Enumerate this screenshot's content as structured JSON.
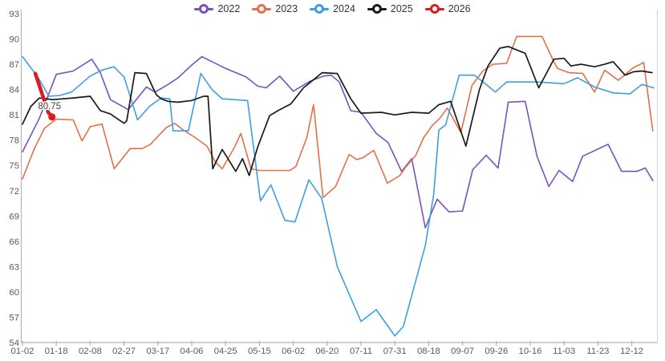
{
  "chart_data": {
    "type": "line",
    "title": "",
    "grid": false,
    "legend_position": "top-center",
    "colors": {
      "axis_line": "#b3b3b3",
      "right_border": "#d9d9d9",
      "tick_label": "#595959",
      "annotation_text": "#3d3d3d"
    },
    "x_axis": {
      "tick_labels": [
        "01-02",
        "01-18",
        "02-08",
        "02-27",
        "03-17",
        "04-06",
        "04-25",
        "05-15",
        "06-02",
        "06-20",
        "07-11",
        "07-31",
        "08-18",
        "09-07",
        "09-26",
        "10-16",
        "11-03",
        "11-23",
        "12-12"
      ],
      "range": [
        0,
        18.72
      ]
    },
    "y_axis": {
      "min": 54,
      "max": 93,
      "step": 3,
      "tick_labels": [
        "54",
        "57",
        "60",
        "63",
        "66",
        "69",
        "72",
        "75",
        "78",
        "81",
        "84",
        "87",
        "90",
        "93"
      ]
    },
    "annotation": {
      "text": "80.75",
      "series": "2026",
      "value": 80.75
    },
    "series": [
      {
        "name": "2022",
        "color": "#7a52bd",
        "line_width": 1.6,
        "marker_end": false,
        "points": [
          [
            0,
            76.6
          ],
          [
            0.5,
            80.6
          ],
          [
            1,
            85.8
          ],
          [
            1.5,
            86.2
          ],
          [
            2.05,
            87.6
          ],
          [
            2.3,
            86.0
          ],
          [
            2.6,
            82.8
          ],
          [
            3.0,
            81.9
          ],
          [
            3.12,
            81.6
          ],
          [
            3.66,
            84.3
          ],
          [
            3.92,
            83.7
          ],
          [
            4.3,
            84.6
          ],
          [
            4.6,
            85.4
          ],
          [
            5.0,
            86.9
          ],
          [
            5.3,
            87.9
          ],
          [
            6.0,
            86.5
          ],
          [
            6.6,
            85.5
          ],
          [
            6.95,
            84.4
          ],
          [
            7.2,
            84.2
          ],
          [
            7.6,
            85.6
          ],
          [
            8.0,
            83.8
          ],
          [
            8.5,
            85.0
          ],
          [
            8.9,
            85.6
          ],
          [
            9.12,
            85.7
          ],
          [
            9.36,
            84.9
          ],
          [
            9.7,
            81.5
          ],
          [
            10.0,
            81.3
          ],
          [
            10.45,
            78.8
          ],
          [
            10.8,
            77.7
          ],
          [
            11.2,
            74.3
          ],
          [
            11.5,
            75.8
          ],
          [
            11.9,
            67.6
          ],
          [
            12.25,
            71.0
          ],
          [
            12.6,
            69.5
          ],
          [
            13.0,
            69.6
          ],
          [
            13.3,
            74.5
          ],
          [
            13.7,
            76.2
          ],
          [
            14.05,
            74.7
          ],
          [
            14.35,
            82.5
          ],
          [
            14.85,
            82.6
          ],
          [
            15.2,
            76.1
          ],
          [
            15.55,
            72.5
          ],
          [
            15.85,
            74.4
          ],
          [
            16.25,
            73.1
          ],
          [
            16.55,
            76.1
          ],
          [
            17.3,
            77.5
          ],
          [
            17.7,
            74.3
          ],
          [
            18.15,
            74.3
          ],
          [
            18.4,
            74.7
          ],
          [
            18.62,
            73.2
          ]
        ]
      },
      {
        "name": "2023",
        "color": "#e1714b",
        "line_width": 1.6,
        "marker_end": false,
        "points": [
          [
            0,
            73.4
          ],
          [
            0.35,
            77.0
          ],
          [
            0.65,
            79.4
          ],
          [
            1,
            80.5
          ],
          [
            1.5,
            80.4
          ],
          [
            1.76,
            77.9
          ],
          [
            2.0,
            79.6
          ],
          [
            2.35,
            79.9
          ],
          [
            2.71,
            74.6
          ],
          [
            3.18,
            77.0
          ],
          [
            3.54,
            77.0
          ],
          [
            3.78,
            77.5
          ],
          [
            4.25,
            79.5
          ],
          [
            4.5,
            80.0
          ],
          [
            4.75,
            79.2
          ],
          [
            5.1,
            78.3
          ],
          [
            5.45,
            77.3
          ],
          [
            5.7,
            75.4
          ],
          [
            5.9,
            74.6
          ],
          [
            6.27,
            77.2
          ],
          [
            6.45,
            78.8
          ],
          [
            6.75,
            74.6
          ],
          [
            7.0,
            74.4
          ],
          [
            7.9,
            74.4
          ],
          [
            8.08,
            74.9
          ],
          [
            8.4,
            78.3
          ],
          [
            8.6,
            82.2
          ],
          [
            8.88,
            71.2
          ],
          [
            9.25,
            72.5
          ],
          [
            9.65,
            76.3
          ],
          [
            9.88,
            75.7
          ],
          [
            10.05,
            75.9
          ],
          [
            10.38,
            76.8
          ],
          [
            10.78,
            72.9
          ],
          [
            11.15,
            73.8
          ],
          [
            11.32,
            74.8
          ],
          [
            11.62,
            76.2
          ],
          [
            11.85,
            78.3
          ],
          [
            12.1,
            79.7
          ],
          [
            12.33,
            80.6
          ],
          [
            12.55,
            81.8
          ],
          [
            12.95,
            78.9
          ],
          [
            13.28,
            84.5
          ],
          [
            13.6,
            86.2
          ],
          [
            13.9,
            87.0
          ],
          [
            14.3,
            87.1
          ],
          [
            14.6,
            90.3
          ],
          [
            15.35,
            90.3
          ],
          [
            15.65,
            87.7
          ],
          [
            15.8,
            86.5
          ],
          [
            16.15,
            86.0
          ],
          [
            16.55,
            85.9
          ],
          [
            16.9,
            83.7
          ],
          [
            17.2,
            86.3
          ],
          [
            17.6,
            85.1
          ],
          [
            18.05,
            86.6
          ],
          [
            18.35,
            87.2
          ],
          [
            18.62,
            79.1
          ]
        ]
      },
      {
        "name": "2024",
        "color": "#3d9fe3",
        "line_width": 1.6,
        "marker_end": false,
        "points": [
          [
            0,
            87.9
          ],
          [
            0.45,
            85.5
          ],
          [
            0.78,
            83.2
          ],
          [
            1.1,
            83.3
          ],
          [
            1.45,
            83.7
          ],
          [
            2.0,
            85.6
          ],
          [
            2.35,
            86.3
          ],
          [
            2.7,
            86.7
          ],
          [
            3.0,
            85.5
          ],
          [
            3.4,
            80.4
          ],
          [
            3.75,
            82.0
          ],
          [
            4.1,
            83.0
          ],
          [
            4.35,
            82.9
          ],
          [
            4.45,
            79.1
          ],
          [
            4.9,
            79.1
          ],
          [
            5.27,
            85.9
          ],
          [
            5.6,
            84.0
          ],
          [
            5.9,
            82.9
          ],
          [
            6.65,
            82.7
          ],
          [
            7.03,
            70.8
          ],
          [
            7.34,
            72.7
          ],
          [
            7.75,
            68.5
          ],
          [
            8.05,
            68.3
          ],
          [
            8.46,
            73.3
          ],
          [
            8.84,
            71.1
          ],
          [
            9.3,
            63.0
          ],
          [
            10.0,
            56.5
          ],
          [
            10.45,
            57.9
          ],
          [
            11.0,
            54.8
          ],
          [
            11.25,
            55.9
          ],
          [
            11.9,
            65.5
          ],
          [
            12.15,
            71.6
          ],
          [
            12.3,
            79.2
          ],
          [
            12.5,
            79.8
          ],
          [
            12.9,
            85.7
          ],
          [
            13.35,
            85.7
          ],
          [
            13.7,
            84.6
          ],
          [
            13.97,
            83.7
          ],
          [
            14.3,
            84.9
          ],
          [
            15.2,
            84.9
          ],
          [
            16.0,
            84.7
          ],
          [
            16.4,
            85.4
          ],
          [
            16.9,
            84.3
          ],
          [
            17.45,
            83.6
          ],
          [
            17.95,
            83.5
          ],
          [
            18.3,
            84.6
          ],
          [
            18.65,
            84.2
          ]
        ]
      },
      {
        "name": "2025",
        "color": "#1a1a1a",
        "line_width": 1.7,
        "marker_end": false,
        "points": [
          [
            0,
            79.9
          ],
          [
            0.25,
            82.0
          ],
          [
            0.5,
            83.0
          ],
          [
            0.9,
            82.8
          ],
          [
            1.5,
            83.0
          ],
          [
            2.0,
            83.2
          ],
          [
            2.3,
            81.5
          ],
          [
            2.6,
            81.1
          ],
          [
            3.0,
            80.0
          ],
          [
            3.08,
            80.3
          ],
          [
            3.32,
            86.0
          ],
          [
            3.66,
            85.9
          ],
          [
            3.95,
            83.4
          ],
          [
            4.1,
            82.9
          ],
          [
            4.3,
            82.6
          ],
          [
            4.6,
            82.5
          ],
          [
            5.0,
            82.7
          ],
          [
            5.35,
            83.2
          ],
          [
            5.48,
            83.2
          ],
          [
            5.62,
            74.6
          ],
          [
            5.9,
            76.9
          ],
          [
            6.3,
            74.3
          ],
          [
            6.5,
            75.8
          ],
          [
            6.7,
            73.8
          ],
          [
            6.95,
            77.2
          ],
          [
            7.3,
            80.9
          ],
          [
            7.55,
            81.5
          ],
          [
            7.93,
            82.3
          ],
          [
            8.3,
            84.2
          ],
          [
            8.55,
            85.0
          ],
          [
            8.85,
            86.0
          ],
          [
            9.3,
            85.9
          ],
          [
            9.7,
            82.9
          ],
          [
            10.0,
            81.2
          ],
          [
            10.6,
            81.3
          ],
          [
            11.0,
            81.0
          ],
          [
            11.5,
            81.3
          ],
          [
            12.0,
            81.2
          ],
          [
            12.3,
            82.2
          ],
          [
            12.65,
            82.6
          ],
          [
            13.1,
            77.3
          ],
          [
            13.5,
            84.0
          ],
          [
            13.75,
            86.8
          ],
          [
            14.1,
            88.9
          ],
          [
            14.35,
            89.1
          ],
          [
            14.85,
            88.3
          ],
          [
            15.25,
            84.2
          ],
          [
            15.7,
            87.6
          ],
          [
            16.0,
            87.7
          ],
          [
            16.2,
            86.8
          ],
          [
            16.5,
            87.0
          ],
          [
            16.9,
            86.7
          ],
          [
            17.2,
            87.0
          ],
          [
            17.45,
            87.3
          ],
          [
            17.8,
            85.7
          ],
          [
            18.05,
            86.1
          ],
          [
            18.3,
            86.2
          ],
          [
            18.6,
            86.0
          ]
        ]
      },
      {
        "name": "2026",
        "color": "#dd1a21",
        "line_width": 4.5,
        "marker_end": true,
        "points": [
          [
            0.38,
            85.9
          ],
          [
            0.76,
            81.3
          ],
          [
            0.87,
            80.75
          ]
        ]
      }
    ]
  }
}
